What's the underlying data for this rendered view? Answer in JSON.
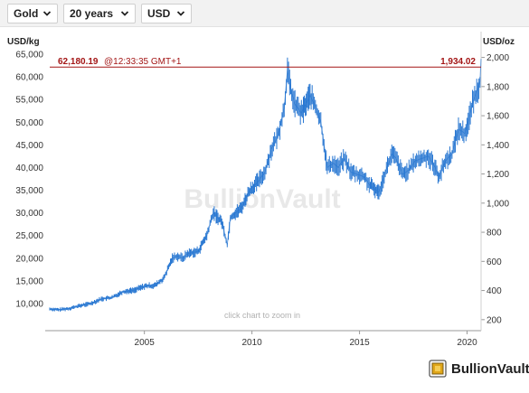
{
  "toolbar": {
    "metal": "Gold",
    "period": "20 years",
    "currency": "USD"
  },
  "brand": {
    "name": "BullionVault"
  },
  "chart_data": {
    "type": "line",
    "watermark": "BullionVault",
    "zoom_hint": "click chart to zoom in",
    "left_axis": {
      "unit": "USD/kg",
      "range": [
        4000,
        70000
      ],
      "ticks": [
        10000,
        15000,
        20000,
        25000,
        30000,
        35000,
        40000,
        45000,
        50000,
        55000,
        60000,
        65000
      ],
      "tick_labels": [
        "10,000",
        "15,000",
        "20,000",
        "25,000",
        "30,000",
        "35,000",
        "40,000",
        "45,000",
        "50,000",
        "55,000",
        "60,000",
        "65,000"
      ]
    },
    "right_axis": {
      "unit": "USD/oz",
      "ticks": [
        200,
        400,
        600,
        800,
        1000,
        1200,
        1400,
        1600,
        1800,
        2000
      ],
      "tick_labels": [
        "200",
        "400",
        "600",
        "800",
        "1,000",
        "1,200",
        "1,400",
        "1,600",
        "1,800",
        "2,000"
      ]
    },
    "x_axis": {
      "range": [
        2000.6,
        2020.65
      ],
      "ticks": [
        2005,
        2010,
        2015,
        2020
      ],
      "tick_labels": [
        "2005",
        "2010",
        "2015",
        "2020"
      ]
    },
    "current_price": {
      "usd_per_kg": 62180.19,
      "usd_per_kg_label": "62,180.19",
      "time_label": "@12:33:35 GMT+1",
      "usd_per_oz_label": "1,934.02"
    },
    "grid": false,
    "series": [
      {
        "color": "#2a78d2",
        "x": [
          2000.6,
          2001.0,
          2001.5,
          2002.0,
          2002.5,
          2003.0,
          2003.5,
          2004.0,
          2004.5,
          2005.0,
          2005.5,
          2005.9,
          2006.3,
          2006.5,
          2006.8,
          2007.0,
          2007.5,
          2007.9,
          2008.2,
          2008.6,
          2008.85,
          2009.0,
          2009.5,
          2009.9,
          2010.3,
          2010.6,
          2010.9,
          2011.2,
          2011.5,
          2011.65,
          2011.8,
          2012.0,
          2012.3,
          2012.7,
          2012.9,
          2013.2,
          2013.5,
          2013.8,
          2014.0,
          2014.3,
          2014.6,
          2014.9,
          2015.2,
          2015.5,
          2015.9,
          2016.2,
          2016.5,
          2016.7,
          2017.0,
          2017.3,
          2017.6,
          2017.9,
          2018.2,
          2018.4,
          2018.7,
          2019.0,
          2019.3,
          2019.6,
          2019.9,
          2020.1,
          2020.3,
          2020.5,
          2020.6,
          2020.65
        ],
        "y": [
          8800,
          8600,
          8900,
          9500,
          10000,
          11000,
          11300,
          12600,
          12900,
          13800,
          14000,
          15500,
          20000,
          20500,
          20000,
          21000,
          21500,
          25000,
          30000,
          28000,
          23000,
          29000,
          31000,
          35000,
          37000,
          39000,
          44000,
          47000,
          53000,
          61500,
          57000,
          54000,
          52000,
          56000,
          54000,
          50000,
          40000,
          41000,
          40000,
          42000,
          39000,
          38500,
          38000,
          36000,
          34500,
          39000,
          43000,
          42000,
          38500,
          39500,
          41500,
          42000,
          42500,
          41000,
          38000,
          41500,
          43000,
          48500,
          47500,
          51000,
          55000,
          57500,
          59000,
          64000
        ]
      }
    ]
  }
}
